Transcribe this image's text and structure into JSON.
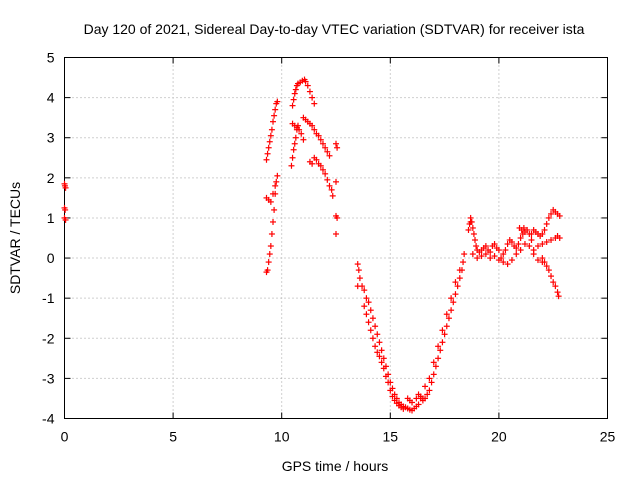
{
  "chart_data": {
    "type": "scatter",
    "title": "Day 120 of 2021, Sidereal Day-to-day VTEC variation (SDTVAR) for receiver ista",
    "xlabel": "GPS time / hours",
    "ylabel": "SDTVAR / TECUs",
    "xlim": [
      0,
      25
    ],
    "ylim": [
      -4,
      5
    ],
    "xticks": [
      0,
      5,
      10,
      15,
      20,
      25
    ],
    "yticks": [
      -4,
      -3,
      -2,
      -1,
      0,
      1,
      2,
      3,
      4,
      5
    ],
    "grid": true,
    "marker": "+",
    "color": "#ff0000",
    "series": [
      {
        "name": "SDTVAR",
        "points": [
          [
            0.0,
            1.85
          ],
          [
            0.02,
            1.8
          ],
          [
            0.05,
            1.75
          ],
          [
            0.0,
            1.25
          ],
          [
            0.03,
            1.2
          ],
          [
            0.0,
            1.0
          ],
          [
            0.05,
            0.95
          ],
          [
            9.3,
            -0.35
          ],
          [
            9.35,
            -0.3
          ],
          [
            9.4,
            -0.1
          ],
          [
            9.45,
            0.1
          ],
          [
            9.5,
            0.3
          ],
          [
            9.55,
            0.6
          ],
          [
            9.6,
            0.9
          ],
          [
            9.65,
            1.2
          ],
          [
            9.7,
            1.6
          ],
          [
            9.75,
            1.9
          ],
          [
            9.8,
            2.05
          ],
          [
            9.3,
            1.5
          ],
          [
            9.4,
            1.45
          ],
          [
            9.5,
            1.4
          ],
          [
            9.6,
            1.6
          ],
          [
            9.7,
            1.8
          ],
          [
            9.3,
            2.45
          ],
          [
            9.35,
            2.6
          ],
          [
            9.4,
            2.75
          ],
          [
            9.45,
            2.9
          ],
          [
            9.5,
            3.05
          ],
          [
            9.55,
            3.2
          ],
          [
            9.6,
            3.4
          ],
          [
            9.65,
            3.55
          ],
          [
            9.7,
            3.7
          ],
          [
            9.75,
            3.85
          ],
          [
            9.8,
            3.9
          ],
          [
            10.45,
            2.3
          ],
          [
            10.5,
            2.5
          ],
          [
            10.55,
            2.7
          ],
          [
            10.6,
            2.85
          ],
          [
            10.65,
            3.0
          ],
          [
            10.7,
            3.2
          ],
          [
            10.75,
            3.3
          ],
          [
            10.5,
            3.35
          ],
          [
            10.6,
            3.3
          ],
          [
            10.7,
            3.25
          ],
          [
            10.8,
            3.2
          ],
          [
            10.9,
            3.1
          ],
          [
            11.0,
            2.95
          ],
          [
            10.5,
            3.8
          ],
          [
            10.55,
            3.95
          ],
          [
            10.6,
            4.1
          ],
          [
            10.65,
            4.2
          ],
          [
            10.7,
            4.3
          ],
          [
            10.75,
            4.35
          ],
          [
            10.85,
            4.38
          ],
          [
            10.95,
            4.42
          ],
          [
            11.05,
            4.45
          ],
          [
            11.1,
            4.4
          ],
          [
            11.2,
            4.3
          ],
          [
            11.3,
            4.15
          ],
          [
            11.4,
            4.0
          ],
          [
            11.5,
            3.85
          ],
          [
            11.0,
            3.5
          ],
          [
            11.1,
            3.45
          ],
          [
            11.2,
            3.4
          ],
          [
            11.3,
            3.35
          ],
          [
            11.4,
            3.3
          ],
          [
            11.5,
            3.2
          ],
          [
            11.6,
            3.1
          ],
          [
            11.7,
            3.05
          ],
          [
            11.8,
            2.95
          ],
          [
            11.9,
            2.85
          ],
          [
            12.0,
            2.75
          ],
          [
            12.1,
            2.65
          ],
          [
            12.2,
            2.55
          ],
          [
            11.5,
            2.5
          ],
          [
            11.6,
            2.45
          ],
          [
            11.7,
            2.35
          ],
          [
            11.8,
            2.3
          ],
          [
            11.9,
            2.2
          ],
          [
            12.0,
            2.1
          ],
          [
            12.1,
            1.95
          ],
          [
            12.2,
            1.8
          ],
          [
            12.3,
            1.7
          ],
          [
            12.35,
            1.55
          ],
          [
            11.3,
            2.4
          ],
          [
            11.4,
            2.35
          ],
          [
            12.5,
            1.9
          ],
          [
            12.5,
            2.85
          ],
          [
            12.55,
            2.75
          ],
          [
            12.5,
            1.05
          ],
          [
            12.55,
            1.0
          ],
          [
            12.5,
            0.6
          ],
          [
            13.5,
            -0.15
          ],
          [
            13.55,
            -0.3
          ],
          [
            13.6,
            -0.5
          ],
          [
            13.5,
            -0.7
          ],
          [
            13.7,
            -0.7
          ],
          [
            13.8,
            -0.8
          ],
          [
            13.9,
            -1.0
          ],
          [
            14.0,
            -1.1
          ],
          [
            14.1,
            -1.3
          ],
          [
            14.2,
            -1.5
          ],
          [
            14.3,
            -1.7
          ],
          [
            14.4,
            -1.9
          ],
          [
            14.5,
            -2.1
          ],
          [
            14.6,
            -2.3
          ],
          [
            14.7,
            -2.5
          ],
          [
            14.8,
            -2.7
          ],
          [
            14.9,
            -2.9
          ],
          [
            15.0,
            -3.1
          ],
          [
            15.1,
            -3.25
          ],
          [
            15.2,
            -3.4
          ],
          [
            15.3,
            -3.5
          ],
          [
            15.4,
            -3.6
          ],
          [
            15.5,
            -3.65
          ],
          [
            15.6,
            -3.7
          ],
          [
            15.7,
            -3.72
          ],
          [
            15.8,
            -3.75
          ],
          [
            15.9,
            -3.78
          ],
          [
            16.0,
            -3.8
          ],
          [
            16.1,
            -3.75
          ],
          [
            16.2,
            -3.7
          ],
          [
            16.3,
            -3.65
          ],
          [
            13.8,
            -1.2
          ],
          [
            13.9,
            -1.4
          ],
          [
            14.0,
            -1.6
          ],
          [
            14.1,
            -1.8
          ],
          [
            14.2,
            -2.0
          ],
          [
            14.3,
            -2.2
          ],
          [
            14.4,
            -2.35
          ],
          [
            14.5,
            -2.45
          ],
          [
            14.6,
            -2.6
          ],
          [
            14.7,
            -2.75
          ],
          [
            14.8,
            -2.95
          ],
          [
            14.9,
            -3.1
          ],
          [
            15.0,
            -3.3
          ],
          [
            15.1,
            -3.45
          ],
          [
            15.2,
            -3.55
          ],
          [
            15.3,
            -3.62
          ],
          [
            15.4,
            -3.68
          ],
          [
            15.5,
            -3.72
          ],
          [
            15.6,
            -3.76
          ],
          [
            15.8,
            -3.5
          ],
          [
            15.9,
            -3.55
          ],
          [
            16.0,
            -3.6
          ],
          [
            16.2,
            -3.5
          ],
          [
            16.4,
            -3.45
          ],
          [
            16.5,
            -3.5
          ],
          [
            16.3,
            -3.4
          ],
          [
            16.4,
            -3.5
          ],
          [
            16.5,
            -3.55
          ],
          [
            16.6,
            -3.5
          ],
          [
            16.7,
            -3.4
          ],
          [
            16.8,
            -3.3
          ],
          [
            16.9,
            -3.1
          ],
          [
            17.0,
            -2.9
          ],
          [
            17.1,
            -2.7
          ],
          [
            17.2,
            -2.5
          ],
          [
            17.3,
            -2.3
          ],
          [
            17.4,
            -2.1
          ],
          [
            17.5,
            -1.9
          ],
          [
            17.6,
            -1.7
          ],
          [
            17.7,
            -1.5
          ],
          [
            17.8,
            -1.3
          ],
          [
            17.9,
            -1.1
          ],
          [
            18.0,
            -0.9
          ],
          [
            18.1,
            -0.7
          ],
          [
            18.2,
            -0.5
          ],
          [
            18.3,
            -0.3
          ],
          [
            18.35,
            -0.1
          ],
          [
            18.4,
            0.1
          ],
          [
            16.6,
            -3.2
          ],
          [
            16.8,
            -3.0
          ],
          [
            17.0,
            -2.6
          ],
          [
            17.2,
            -2.2
          ],
          [
            17.4,
            -1.8
          ],
          [
            17.6,
            -1.4
          ],
          [
            17.8,
            -1.0
          ],
          [
            18.0,
            -0.6
          ],
          [
            18.2,
            -0.3
          ],
          [
            18.7,
            1.0
          ],
          [
            18.75,
            0.9
          ],
          [
            18.8,
            0.75
          ],
          [
            18.85,
            0.6
          ],
          [
            18.9,
            0.45
          ],
          [
            18.95,
            0.3
          ],
          [
            19.0,
            0.2
          ],
          [
            19.1,
            0.15
          ],
          [
            19.2,
            0.2
          ],
          [
            19.3,
            0.25
          ],
          [
            19.4,
            0.3
          ],
          [
            19.5,
            0.2
          ],
          [
            19.6,
            0.15
          ],
          [
            19.7,
            0.3
          ],
          [
            19.8,
            0.35
          ],
          [
            19.9,
            0.25
          ],
          [
            20.0,
            0.2
          ],
          [
            18.8,
            0.1
          ],
          [
            19.0,
            0.0
          ],
          [
            19.2,
            0.05
          ],
          [
            19.4,
            0.1
          ],
          [
            19.6,
            0.0
          ],
          [
            19.8,
            0.05
          ],
          [
            20.0,
            -0.05
          ],
          [
            20.1,
            0.0
          ],
          [
            20.2,
            0.1
          ],
          [
            20.3,
            0.2
          ],
          [
            20.4,
            0.35
          ],
          [
            20.5,
            0.45
          ],
          [
            20.6,
            0.4
          ],
          [
            20.7,
            0.3
          ],
          [
            20.8,
            0.25
          ],
          [
            20.9,
            0.35
          ],
          [
            21.0,
            0.5
          ],
          [
            21.1,
            0.6
          ],
          [
            21.2,
            0.65
          ],
          [
            21.3,
            0.7
          ],
          [
            21.4,
            0.6
          ],
          [
            21.5,
            0.45
          ],
          [
            20.2,
            -0.1
          ],
          [
            20.4,
            -0.15
          ],
          [
            20.6,
            -0.05
          ],
          [
            20.8,
            0.1
          ],
          [
            21.0,
            0.2
          ],
          [
            21.2,
            0.35
          ],
          [
            21.4,
            0.3
          ],
          [
            21.6,
            0.1
          ],
          [
            21.8,
            -0.05
          ],
          [
            22.0,
            -0.1
          ],
          [
            21.5,
            0.6
          ],
          [
            21.6,
            0.7
          ],
          [
            21.7,
            0.65
          ],
          [
            21.8,
            0.6
          ],
          [
            21.9,
            0.55
          ],
          [
            22.0,
            0.6
          ],
          [
            22.1,
            0.7
          ],
          [
            22.2,
            0.85
          ],
          [
            22.3,
            1.0
          ],
          [
            22.4,
            1.1
          ],
          [
            22.5,
            1.2
          ],
          [
            22.6,
            1.15
          ],
          [
            22.7,
            1.1
          ],
          [
            22.8,
            1.05
          ],
          [
            21.6,
            0.2
          ],
          [
            21.8,
            0.3
          ],
          [
            22.0,
            0.35
          ],
          [
            22.2,
            0.4
          ],
          [
            22.4,
            0.45
          ],
          [
            22.6,
            0.5
          ],
          [
            22.7,
            0.55
          ],
          [
            22.8,
            0.5
          ],
          [
            22.0,
            0.0
          ],
          [
            22.1,
            -0.1
          ],
          [
            22.2,
            -0.2
          ],
          [
            22.3,
            -0.3
          ],
          [
            22.4,
            -0.45
          ],
          [
            22.5,
            -0.6
          ],
          [
            22.6,
            -0.7
          ],
          [
            22.7,
            -0.85
          ],
          [
            22.75,
            -0.95
          ],
          [
            18.6,
            0.7
          ],
          [
            18.65,
            0.85
          ],
          [
            18.7,
            0.9
          ],
          [
            20.95,
            0.75
          ],
          [
            21.05,
            0.7
          ],
          [
            21.15,
            0.75
          ]
        ]
      }
    ]
  }
}
